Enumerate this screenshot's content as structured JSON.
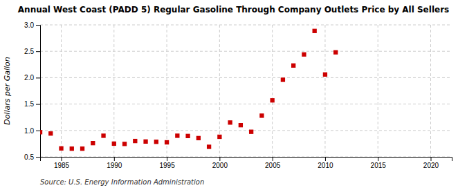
{
  "chart_data": {
    "type": "scatter",
    "title": "Annual West Coast (PADD 5) Regular Gasoline Through Company Outlets Price by All Sellers",
    "ylabel": "Dollars per Gallon",
    "annotation": "Source: U.S. Energy Information Administration",
    "x": [
      1983,
      1984,
      1985,
      1986,
      1987,
      1988,
      1989,
      1990,
      1991,
      1992,
      1993,
      1994,
      1995,
      1996,
      1997,
      1998,
      1999,
      2000,
      2001,
      2002,
      2003,
      2004,
      2005,
      2006,
      2007,
      2008,
      2009,
      2010,
      2011
    ],
    "values": [
      0.967,
      0.942,
      0.66,
      0.655,
      0.655,
      0.76,
      0.9,
      0.75,
      0.745,
      0.8,
      0.79,
      0.785,
      0.775,
      0.9,
      0.895,
      0.855,
      0.69,
      0.88,
      1.15,
      1.1,
      0.975,
      1.28,
      1.57,
      1.96,
      2.23,
      2.44,
      2.885,
      2.06,
      2.48
    ],
    "color": "#cc0000",
    "marker": "square",
    "xlim": [
      1983,
      2022
    ],
    "ylim": [
      0.5,
      3.0
    ],
    "xticks": [
      1985,
      1990,
      1995,
      2000,
      2005,
      2010,
      2015,
      2020
    ],
    "yticks": [
      0.5,
      {
        "value": 1.0,
        "label": "1.0"
      },
      1.5,
      {
        "value": 2.0,
        "label": "2.0"
      },
      2.5,
      {
        "value": 3.0,
        "label": "3.0"
      }
    ],
    "grid": true
  }
}
